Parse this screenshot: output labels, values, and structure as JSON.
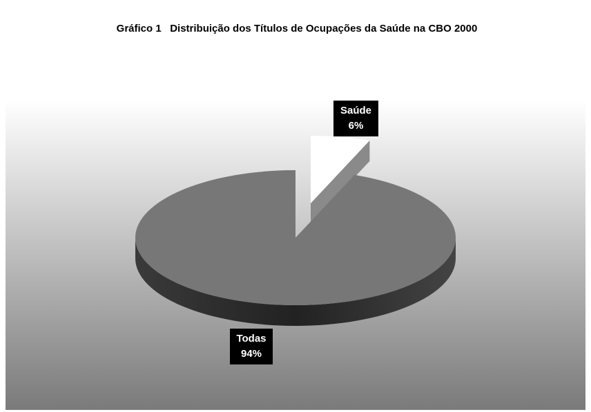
{
  "chart_data": {
    "type": "pie",
    "title": "Gráfico 1   Distribuição dos Títulos de Ocupações da Saúde na CBO 2000",
    "categories": [
      "Todas",
      "Saúde"
    ],
    "values": [
      94,
      6
    ],
    "value_labels": [
      "94%",
      "6%"
    ],
    "colors": [
      "#777777",
      "#ffffff"
    ],
    "explode": [
      false,
      true
    ],
    "three_d": true
  }
}
